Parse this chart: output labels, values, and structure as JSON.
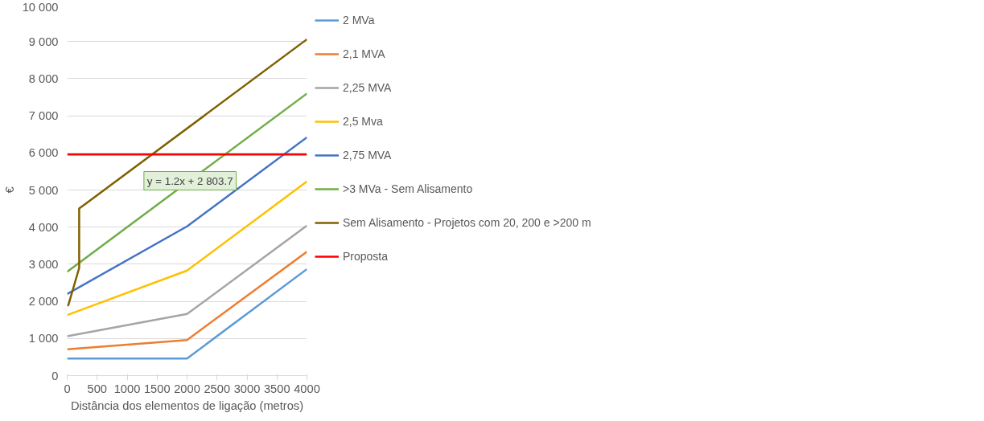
{
  "chart_data": {
    "type": "line",
    "ylabel": "€",
    "xlabel": "Distância dos elementos de ligação (metros)",
    "xlim": [
      0,
      4000
    ],
    "xticks": [
      0,
      500,
      1000,
      1500,
      2000,
      2500,
      3000,
      3500,
      4000
    ],
    "ylim": [
      0,
      10000
    ],
    "yticks": [
      0,
      {
        "value": 1000,
        "label": "1 000"
      },
      {
        "value": 2000,
        "label": "2 000"
      },
      {
        "value": 3000,
        "label": "3 000"
      },
      {
        "value": 4000,
        "label": "4 000"
      },
      {
        "value": 5000,
        "label": "5 000"
      },
      {
        "value": 6000,
        "label": "6 000"
      },
      {
        "value": 7000,
        "label": "7 000"
      },
      {
        "value": 8000,
        "label": "8 000"
      },
      {
        "value": 9000,
        "label": "9 000"
      },
      {
        "value": 10000,
        "label": "10 000"
      }
    ],
    "grid": "y",
    "legend": "right",
    "marker": "none",
    "line_style": "solid",
    "annotations": [
      "y = 1.2x + 2 803.7"
    ],
    "series": [
      {
        "name": "2 MVa",
        "color": "#5b9bd5",
        "x": [
          0,
          2000,
          4000
        ],
        "values": [
          460,
          460,
          2870
        ]
      },
      {
        "name": "2,1 MVA",
        "color": "#ed7d31",
        "x": [
          0,
          2000,
          4000
        ],
        "values": [
          710,
          960,
          3340
        ]
      },
      {
        "name": "2,25 MVA",
        "color": "#a5a5a5",
        "x": [
          0,
          2000,
          4000
        ],
        "values": [
          1060,
          1660,
          4040
        ]
      },
      {
        "name": "2,5 Mva",
        "color": "#ffc000",
        "x": [
          0,
          2000,
          4000
        ],
        "values": [
          1630,
          2830,
          5230
        ]
      },
      {
        "name": "2,75 MVA",
        "color": "#4472c4",
        "x": [
          0,
          2000,
          4000
        ],
        "values": [
          2200,
          4020,
          6420
        ]
      },
      {
        "name": ">3 MVa - Sem Alisamento",
        "color": "#70ad47",
        "x": [
          0,
          4000
        ],
        "values": [
          2800,
          7600
        ]
      },
      {
        "name": "Sem Alisamento - Projetos com 20, 200 e >200 m",
        "color": "#7f6000",
        "x": [
          0,
          20,
          200,
          200,
          4000
        ],
        "values": [
          1880,
          1900,
          2900,
          4500,
          9060
        ]
      },
      {
        "name": "Proposta",
        "color": "#ff0000",
        "x": [
          0,
          4000
        ],
        "values": [
          5960,
          5960
        ]
      }
    ]
  }
}
